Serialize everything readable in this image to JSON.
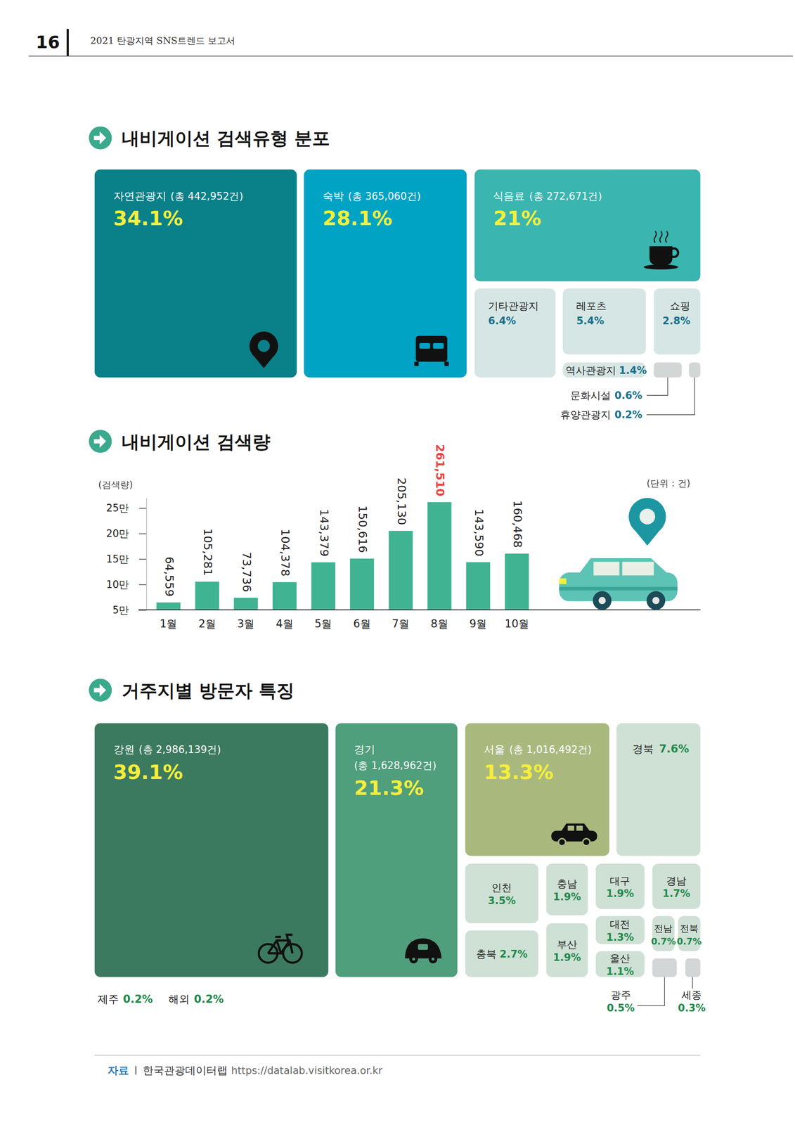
{
  "header": {
    "page_number": 16,
    "title": "2021 탄광지역 SNS트렌드 보고서"
  },
  "chart_data": [
    {
      "type": "treemap",
      "title": "내비게이션 검색유형 분포",
      "categories": [
        "자연관광지",
        "숙박",
        "식음료",
        "기타관광지",
        "레포츠",
        "쇼핑",
        "역사관광지",
        "문화시설",
        "휴양관광지"
      ],
      "values": [
        34.1,
        28.1,
        21,
        6.4,
        5.4,
        2.8,
        1.4,
        0.6,
        0.2
      ],
      "value_labels": [
        "34.1%",
        "28.1%",
        "21%",
        "6.4%",
        "5.4%",
        "2.8%",
        "1.4%",
        "0.6%",
        "0.2%"
      ],
      "totals": [
        "(총 442,952건)",
        "(총 365,060건)",
        "(총 272,671건)",
        null,
        null,
        null,
        null,
        null,
        null
      ],
      "colors": [
        "#0a8089",
        "#00a3c4",
        "#3ab5af",
        "#d6e6e4",
        "#d6e6e4",
        "#d6e6e4",
        "#d6e6e4",
        "#d3d6d6",
        "#d3d6d6"
      ]
    },
    {
      "type": "bar",
      "title": "내비게이션 검색량",
      "y_label": "(검색량)",
      "unit_label": "(단위 : 건)",
      "categories": [
        "1월",
        "2월",
        "3월",
        "4월",
        "5월",
        "6월",
        "7월",
        "8월",
        "9월",
        "10월"
      ],
      "values": [
        64559,
        105281,
        73736,
        104378,
        143379,
        150616,
        205130,
        261510,
        143590,
        160468
      ],
      "value_labels": [
        "64,559",
        "105,281",
        "73,736",
        "104,378",
        "143,379",
        "150,616",
        "205,130",
        "261,510",
        "143,590",
        "160,468"
      ],
      "color": "#40b392",
      "ylim": [
        50000,
        270000
      ],
      "yticks": [
        {
          "value": 50000,
          "label": "5만"
        },
        {
          "value": 100000,
          "label": "10만"
        },
        {
          "value": 150000,
          "label": "15만"
        },
        {
          "value": 200000,
          "label": "20만"
        },
        {
          "value": 250000,
          "label": "25만"
        }
      ],
      "data_labels": true,
      "grid": false
    },
    {
      "type": "treemap",
      "title": "거주지별 방문자 특징",
      "categories": [
        "강원",
        "경기",
        "서울",
        "경북",
        "인천",
        "충북",
        "충남",
        "부산",
        "대구",
        "경남",
        "대전",
        "울산",
        "전남",
        "전북",
        "광주",
        "세종",
        "제주",
        "해외"
      ],
      "values": [
        39.1,
        21.3,
        13.3,
        7.6,
        3.5,
        2.7,
        1.9,
        1.9,
        1.9,
        1.7,
        1.3,
        1.1,
        0.7,
        0.7,
        0.5,
        0.3,
        0.2,
        0.2
      ],
      "value_labels": [
        "39.1%",
        "21.3%",
        "13.3%",
        "7.6%",
        "3.5%",
        "2.7%",
        "1.9%",
        "1.9%",
        "1.9%",
        "1.7%",
        "1.3%",
        "1.1%",
        "0.7%",
        "0.7%",
        "0.5%",
        "0.3%",
        "0.2%",
        "0.2%"
      ],
      "totals": [
        "(총 2,986,139건)",
        "(총 1,628,962건)",
        "(총 1,016,492건)",
        null,
        null,
        null,
        null,
        null,
        null,
        null,
        null,
        null,
        null,
        null,
        null,
        null,
        null,
        null
      ]
    }
  ],
  "source": {
    "label": "자료",
    "name": "한국관광데이터랩",
    "url": "https://datalab.visitkorea.or.kr"
  }
}
